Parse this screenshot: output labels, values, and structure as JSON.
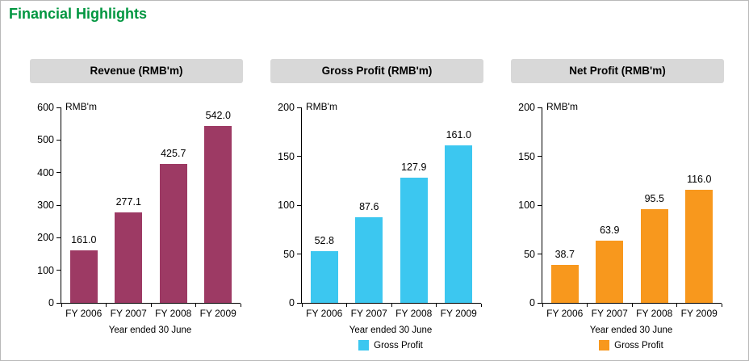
{
  "page": {
    "title": "Financial Highlights",
    "title_color": "#009640"
  },
  "chart_data": [
    {
      "type": "bar",
      "title": "Revenue (RMB'm)",
      "unit_label": "RMB'm",
      "xlabel": "Year ended 30 June",
      "categories": [
        "FY 2006",
        "FY 2007",
        "FY 2008",
        "FY 2009"
      ],
      "values": [
        161.0,
        277.1,
        425.7,
        542.0
      ],
      "value_labels": [
        "161.0",
        "277.1",
        "425.7",
        "542.0"
      ],
      "ylim": [
        0,
        600
      ],
      "yticks": [
        0,
        100,
        200,
        300,
        400,
        500,
        600
      ],
      "grid": false,
      "bar_color": "#9d3a64",
      "legend": null
    },
    {
      "type": "bar",
      "title": "Gross Profit (RMB'm)",
      "unit_label": "RMB'm",
      "xlabel": "Year ended 30 June",
      "categories": [
        "FY 2006",
        "FY 2007",
        "FY 2008",
        "FY 2009"
      ],
      "values": [
        52.8,
        87.6,
        127.9,
        161.0
      ],
      "value_labels": [
        "52.8",
        "87.6",
        "127.9",
        "161.0"
      ],
      "ylim": [
        0,
        200
      ],
      "yticks": [
        0,
        50,
        100,
        150,
        200
      ],
      "grid": false,
      "bar_color": "#3cc7f0",
      "legend": {
        "label": "Gross Profit",
        "color": "#3cc7f0",
        "position": "bottom"
      }
    },
    {
      "type": "bar",
      "title": "Net Profit (RMB'm)",
      "unit_label": "RMB'm",
      "xlabel": "Year ended 30 June",
      "categories": [
        "FY 2006",
        "FY 2007",
        "FY 2008",
        "FY 2009"
      ],
      "values": [
        38.7,
        63.9,
        95.5,
        116.0
      ],
      "value_labels": [
        "38.7",
        "63.9",
        "95.5",
        "116.0"
      ],
      "ylim": [
        0,
        200
      ],
      "yticks": [
        0,
        50,
        100,
        150,
        200
      ],
      "grid": false,
      "bar_color": "#f8981d",
      "legend": {
        "label": "Gross Profit",
        "color": "#f8981d",
        "position": "bottom"
      }
    }
  ]
}
